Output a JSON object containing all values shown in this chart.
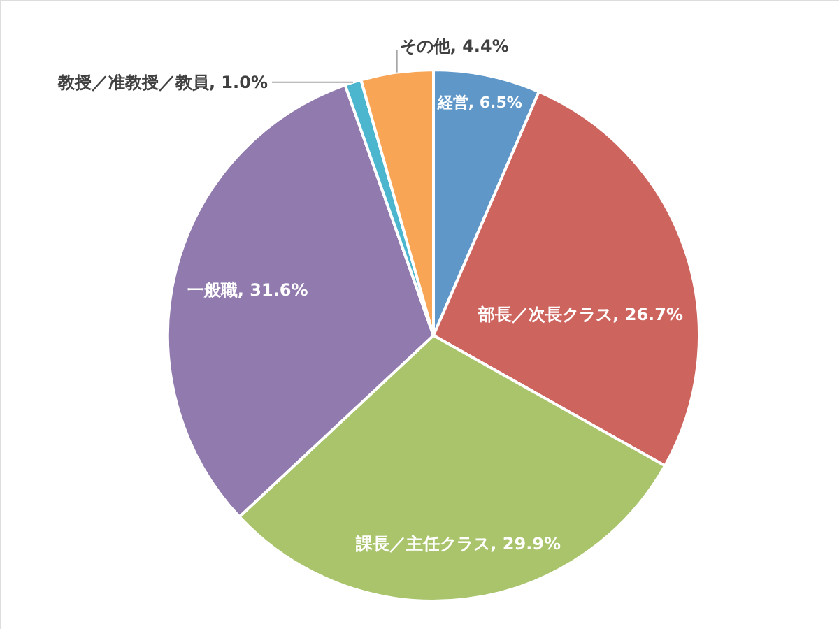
{
  "chart_data": {
    "type": "pie",
    "categories": [
      "経営",
      "部長／次長クラス",
      "課長／主任クラス",
      "一般職",
      "教授／准教授／教員",
      "その他"
    ],
    "values": [
      6.5,
      26.7,
      29.9,
      31.6,
      1.0,
      4.4
    ],
    "colors": [
      "#5f97c9",
      "#cd645e",
      "#a9c46b",
      "#917aae",
      "#4bb6ce",
      "#f8a656"
    ],
    "value_labels": [
      "6.5%",
      "26.7%",
      "29.9%",
      "31.6%",
      "1.0%",
      "4.4%"
    ]
  }
}
